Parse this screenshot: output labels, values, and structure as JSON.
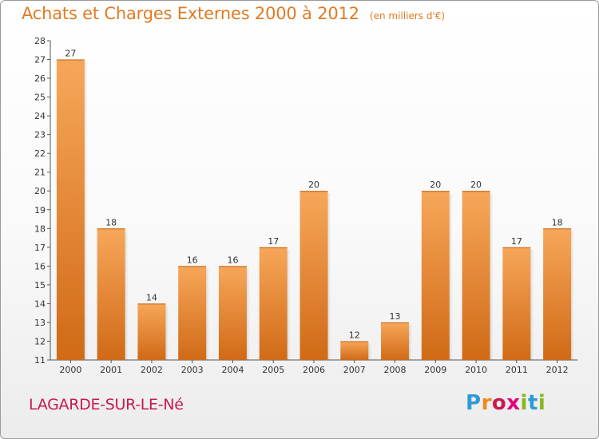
{
  "header": {
    "title": "Achats et Charges Externes 2000 à 2012",
    "subtitle": "(en milliers d'€)"
  },
  "footer": {
    "commune": "LAGARDE-SUR-LE-Né",
    "logo": {
      "letters": [
        "P",
        "r",
        "o",
        "x",
        "i",
        "t",
        "i"
      ],
      "colors": [
        "#2f9bd6",
        "#f08a1c",
        "#c8194d",
        "#e5007e",
        "#87b71e",
        "#2f9bd6",
        "#87b71e"
      ]
    }
  },
  "chart_data": {
    "type": "bar",
    "title": "Achats et Charges Externes 2000 à 2012",
    "subtitle": "(en milliers d'€)",
    "categories": [
      "2000",
      "2001",
      "2002",
      "2003",
      "2004",
      "2005",
      "2006",
      "2007",
      "2008",
      "2009",
      "2010",
      "2011",
      "2012"
    ],
    "values": [
      27,
      18,
      14,
      16,
      16,
      17,
      20,
      12,
      13,
      20,
      20,
      17,
      18
    ],
    "ylim": [
      11,
      28
    ],
    "yticks": [
      11,
      12,
      13,
      14,
      15,
      16,
      17,
      18,
      19,
      20,
      21,
      22,
      23,
      24,
      25,
      26,
      27,
      28
    ],
    "grid": false,
    "bar_color_top": "#f7a75a",
    "bar_color_bottom": "#d06a16"
  }
}
